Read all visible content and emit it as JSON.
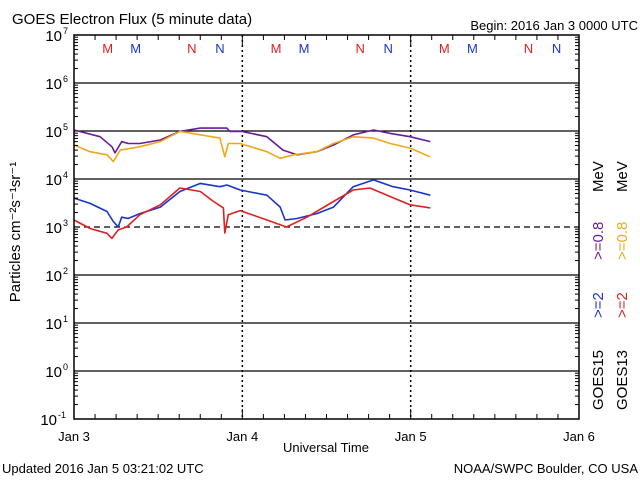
{
  "header": {
    "title": "GOES Electron Flux (5 minute data)",
    "begin": "Begin: 2016 Jan 3 0000 UTC"
  },
  "footer": {
    "updated": "Updated 2016 Jan  5 03:21:02 UTC",
    "credit": "NOAA/SWPC Boulder, CO USA"
  },
  "chart_data": {
    "type": "line",
    "title": "GOES Electron Flux (5 minute data)",
    "xlabel": "Universal Time",
    "ylabel": "Particles cm⁻²s⁻¹sr⁻¹",
    "x_units": "hours since 2016 Jan 3 0000 UTC",
    "xlim": [
      0,
      72
    ],
    "yscale": "log",
    "ylim": [
      0.1,
      10000000
    ],
    "x_ticks": [
      {
        "h": 0,
        "label": "Jan 3"
      },
      {
        "h": 24,
        "label": "Jan 4"
      },
      {
        "h": 48,
        "label": "Jan 5"
      },
      {
        "h": 72,
        "label": "Jan 6"
      }
    ],
    "y_ticks": [
      {
        "exp": "7"
      },
      {
        "exp": "6"
      },
      {
        "exp": "5"
      },
      {
        "exp": "4"
      },
      {
        "exp": "3"
      },
      {
        "exp": "2"
      },
      {
        "exp": "1"
      },
      {
        "exp": "0"
      },
      {
        "exp": "-1"
      }
    ],
    "y_tick_base": "10",
    "threshold": 1000,
    "grid": "horizontal lines at each decade, dashed at threshold",
    "markers": [
      {
        "label": "M",
        "h": 4.8,
        "color": "#e02020"
      },
      {
        "label": "M",
        "h": 8.8,
        "color": "#1a35c8"
      },
      {
        "label": "N",
        "h": 16.8,
        "color": "#e02020"
      },
      {
        "label": "N",
        "h": 20.8,
        "color": "#1a35c8"
      },
      {
        "label": "M",
        "h": 28.8,
        "color": "#e02020"
      },
      {
        "label": "M",
        "h": 32.8,
        "color": "#1a35c8"
      },
      {
        "label": "N",
        "h": 40.8,
        "color": "#e02020"
      },
      {
        "label": "N",
        "h": 44.8,
        "color": "#1a35c8"
      },
      {
        "label": "M",
        "h": 52.8,
        "color": "#e02020"
      },
      {
        "label": "M",
        "h": 56.8,
        "color": "#1a35c8"
      },
      {
        "label": "N",
        "h": 64.8,
        "color": "#e02020"
      },
      {
        "label": "N",
        "h": 68.8,
        "color": "#1a35c8"
      }
    ],
    "legend": {
      "placement": "right",
      "columns": [
        {
          "satellite": "GOES15",
          "e2": ">=2",
          "e08": ">=0.8",
          "unit": "MeV",
          "e2_color": "#1a35c8",
          "e08_color": "#6a1b9a"
        },
        {
          "satellite": "GOES13",
          "e2": ">=2",
          "e08": ">=0.8",
          "unit": "MeV",
          "e2_color": "#e02020",
          "e08_color": "#f0a818"
        }
      ]
    },
    "series": [
      {
        "name": "GOES15 >=0.8 MeV",
        "color": "#6a1b9a",
        "x": [
          0,
          3.7,
          5.4,
          5.85,
          6.8,
          7.75,
          9.4,
          12.3,
          15.1,
          18.0,
          21.8,
          22.2,
          23.9,
          27.5,
          29.8,
          31.8,
          34.6,
          37.0,
          39.8,
          42.7,
          45.1,
          47.9,
          50.8
        ],
        "y": [
          105000,
          76000,
          47000,
          35000,
          60000,
          55000,
          55000,
          65000,
          98000,
          115000,
          115000,
          98000,
          98000,
          76000,
          40000,
          32000,
          37000,
          51000,
          83000,
          105000,
          89000,
          76000,
          60000
        ]
      },
      {
        "name": "GOES13 >=0.8 MeV",
        "color": "#f0a818",
        "x": [
          0,
          2.3,
          4.7,
          5.6,
          6.6,
          9.4,
          12.3,
          15.1,
          20.8,
          21.5,
          22.0,
          23.7,
          27.5,
          29.4,
          31.3,
          34.6,
          37.0,
          39.8,
          42.7,
          45.1,
          47.9,
          50.8
        ],
        "y": [
          51000,
          37000,
          32000,
          23000,
          40000,
          47000,
          60000,
          98000,
          71000,
          29000,
          55000,
          55000,
          37000,
          27000,
          32000,
          37000,
          55000,
          76000,
          71000,
          55000,
          44000,
          29000
        ]
      },
      {
        "name": "GOES15 >=2 MeV",
        "color": "#1a35c8",
        "x": [
          0,
          2.3,
          4.7,
          5.6,
          6.3,
          6.8,
          7.7,
          9.4,
          12.3,
          15.1,
          18.0,
          20.8,
          21.8,
          23.7,
          27.5,
          29.4,
          30.1,
          31.8,
          34.6,
          37.0,
          39.8,
          42.7,
          45.5,
          47.9,
          50.8
        ],
        "y": [
          4000,
          3100,
          2100,
          1300,
          1000,
          1600,
          1500,
          1900,
          2600,
          5500,
          8100,
          6900,
          7500,
          5900,
          4600,
          2600,
          1400,
          1500,
          1900,
          2600,
          6900,
          9600,
          6900,
          5900,
          4600
        ]
      },
      {
        "name": "GOES13 >=2 MeV",
        "color": "#e02020",
        "x": [
          0,
          2.3,
          4.7,
          5.4,
          6.3,
          7.5,
          9.4,
          12.3,
          15.1,
          18.0,
          19.9,
          21.3,
          21.5,
          22.0,
          23.7,
          27.5,
          30.3,
          33.2,
          37.0,
          39.8,
          42.2,
          45.1,
          47.9,
          50.8
        ],
        "y": [
          1400,
          930,
          740,
          580,
          870,
          1000,
          1800,
          2900,
          6500,
          5500,
          3400,
          2500,
          750,
          1800,
          2200,
          1400,
          1000,
          1600,
          3400,
          5900,
          6500,
          4300,
          2900,
          2500
        ]
      }
    ]
  }
}
